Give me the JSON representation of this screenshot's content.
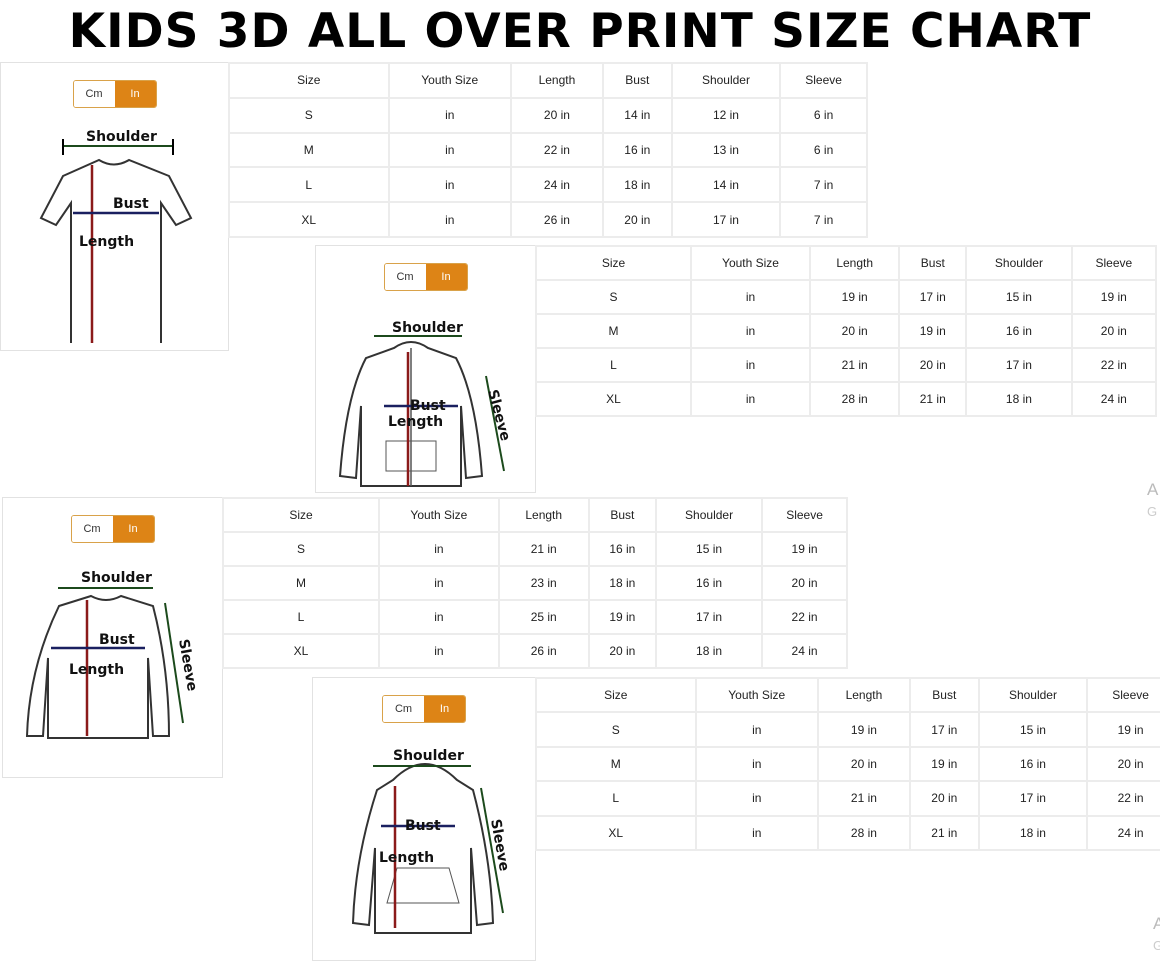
{
  "title": "KIDS 3D ALL OVER PRINT SIZE CHART",
  "unit_toggle": {
    "cm_label": "Cm",
    "in_label": "In",
    "selected": "In",
    "accent_color": "#dd8416"
  },
  "columns": [
    "Size",
    "Youth Size",
    "Length",
    "Bust",
    "Shoulder",
    "Sleeve"
  ],
  "panels": [
    {
      "garment": "t-shirt",
      "labels": {
        "shoulder": "Shoulder",
        "bust": "Bust",
        "length": "Length"
      },
      "rows": [
        [
          "S",
          "in",
          "20 in",
          "14 in",
          "12 in",
          "6 in"
        ],
        [
          "M",
          "in",
          "22 in",
          "16 in",
          "13 in",
          "6 in"
        ],
        [
          "L",
          "in",
          "24 in",
          "18 in",
          "14 in",
          "7 in"
        ],
        [
          "XL",
          "in",
          "26 in",
          "20 in",
          "17 in",
          "7 in"
        ]
      ]
    },
    {
      "garment": "zip-hoodie",
      "labels": {
        "shoulder": "Shoulder",
        "bust": "Bust",
        "length": "Length",
        "sleeve": "Sleeve"
      },
      "rows": [
        [
          "S",
          "in",
          "19 in",
          "17 in",
          "15 in",
          "19 in"
        ],
        [
          "M",
          "in",
          "20 in",
          "19 in",
          "16 in",
          "20 in"
        ],
        [
          "L",
          "in",
          "21 in",
          "20 in",
          "17 in",
          "22 in"
        ],
        [
          "XL",
          "in",
          "28 in",
          "21 in",
          "18 in",
          "24 in"
        ]
      ]
    },
    {
      "garment": "long-sleeve-shirt",
      "labels": {
        "shoulder": "Shoulder",
        "bust": "Bust",
        "length": "Length",
        "sleeve": "Sleeve"
      },
      "rows": [
        [
          "S",
          "in",
          "21 in",
          "16 in",
          "15 in",
          "19 in"
        ],
        [
          "M",
          "in",
          "23 in",
          "18 in",
          "16 in",
          "20 in"
        ],
        [
          "L",
          "in",
          "25 in",
          "19 in",
          "17 in",
          "22 in"
        ],
        [
          "XL",
          "in",
          "26 in",
          "20 in",
          "18 in",
          "24 in"
        ]
      ]
    },
    {
      "garment": "pullover-hoodie",
      "labels": {
        "shoulder": "Shoulder",
        "bust": "Bust",
        "length": "Length",
        "sleeve": "Sleeve"
      },
      "rows": [
        [
          "S",
          "in",
          "19 in",
          "17 in",
          "15 in",
          "19 in"
        ],
        [
          "M",
          "in",
          "20 in",
          "19 in",
          "16 in",
          "20 in"
        ],
        [
          "L",
          "in",
          "21 in",
          "20 in",
          "17 in",
          "22 in"
        ],
        [
          "XL",
          "in",
          "28 in",
          "21 in",
          "18 in",
          "24 in"
        ]
      ]
    }
  ],
  "edge_fragments": [
    {
      "top": "A",
      "bottom": "G"
    },
    {
      "top": "A",
      "bottom": "G"
    }
  ]
}
